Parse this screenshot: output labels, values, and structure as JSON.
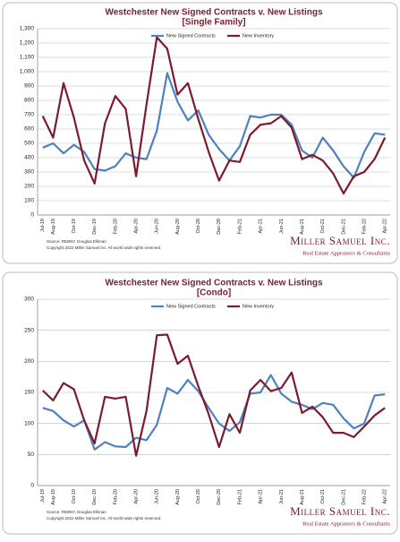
{
  "chart_data": [
    {
      "type": "line",
      "title": "Westchester New Signed Contracts v. New Listings",
      "subtitle": "[Single Family]",
      "categories": [
        "Jul-19",
        "Aug-19",
        null,
        "Oct-19",
        null,
        "Dec-19",
        null,
        "Feb-20",
        null,
        "Apr-20",
        null,
        "Jun-20",
        null,
        "Aug-20",
        null,
        "Oct-20",
        null,
        "Dec-20",
        null,
        "Feb-21",
        null,
        "Apr-21",
        null,
        "Jun-21",
        null,
        "Aug-21",
        null,
        "Oct-21",
        null,
        "Dec-21",
        null,
        "Feb-22",
        null,
        "Apr-22"
      ],
      "series": [
        {
          "name": "New Signed Contracts",
          "color": "#4f81bd",
          "values": [
            470,
            500,
            430,
            490,
            440,
            320,
            310,
            340,
            430,
            400,
            390,
            590,
            990,
            790,
            660,
            730,
            560,
            460,
            380,
            480,
            690,
            680,
            700,
            700,
            630,
            450,
            400,
            540,
            450,
            340,
            260,
            440,
            570,
            560
          ]
        },
        {
          "name": "New Inventory",
          "color": "#7b1c2e",
          "values": [
            690,
            540,
            920,
            680,
            380,
            220,
            640,
            830,
            740,
            270,
            770,
            1240,
            1160,
            840,
            920,
            670,
            440,
            240,
            380,
            370,
            560,
            630,
            640,
            690,
            610,
            390,
            420,
            380,
            290,
            150,
            270,
            300,
            390,
            540
          ]
        }
      ],
      "ylim": [
        0,
        1300
      ],
      "yticks": [
        0,
        100,
        200,
        300,
        400,
        500,
        600,
        700,
        800,
        900,
        {
          "value": 1000,
          "label": "1,000"
        },
        {
          "value": 1100,
          "label": "1,100"
        },
        {
          "value": 1200,
          "label": "1,200"
        },
        {
          "value": 1300,
          "label": "1,300"
        }
      ],
      "grid": true,
      "legend": "top"
    },
    {
      "type": "line",
      "title": "Westchester New Signed Contracts v. New Listings",
      "subtitle": "[Condo]",
      "categories": [
        "Jul-19",
        "Aug-19",
        null,
        "Oct-19",
        null,
        "Dec-19",
        null,
        "Feb-20",
        null,
        "Apr-20",
        null,
        "Jun-20",
        null,
        "Aug-20",
        null,
        "Oct-20",
        null,
        "Dec-20",
        null,
        "Feb-21",
        null,
        "Apr-21",
        null,
        "Jun-21",
        null,
        "Aug-21",
        null,
        "Oct-21",
        null,
        "Dec-21",
        null,
        "Feb-22",
        null,
        "Apr-22"
      ],
      "series": [
        {
          "name": "New Signed Contracts",
          "color": "#4f81bd",
          "values": [
            125,
            120,
            105,
            95,
            105,
            58,
            70,
            63,
            62,
            77,
            73,
            98,
            157,
            148,
            170,
            152,
            125,
            100,
            88,
            102,
            148,
            150,
            178,
            148,
            135,
            130,
            123,
            133,
            130,
            108,
            92,
            100,
            145,
            147
          ]
        },
        {
          "name": "New Inventory",
          "color": "#7b1c2e",
          "values": [
            153,
            137,
            165,
            155,
            105,
            68,
            143,
            140,
            143,
            48,
            120,
            242,
            243,
            196,
            209,
            160,
            115,
            62,
            115,
            85,
            153,
            170,
            152,
            157,
            182,
            117,
            127,
            110,
            85,
            85,
            78,
            95,
            113,
            125
          ]
        }
      ],
      "ylim": [
        0,
        300
      ],
      "yticks": [
        0,
        50,
        100,
        150,
        200,
        250,
        300
      ],
      "grid": true,
      "legend": "top"
    }
  ],
  "footer": [
    {
      "source": "Source: REBNY, Douglas Elliman",
      "copyright": "Copyright 2022 Miller Samuel Inc. All world wide rights reserved.",
      "logo": "Miller Samuel Inc.",
      "tagline": "Real Estate Appraisers & Consultants"
    },
    {
      "source": "Source: REBNY, Douglas Elliman",
      "copyright": "Copyright 2022 Miller Samuel Inc. All world wide rights reserved.",
      "logo": "Miller Samuel Inc.",
      "tagline": "Real Estate Appraisers & Consultants"
    }
  ]
}
